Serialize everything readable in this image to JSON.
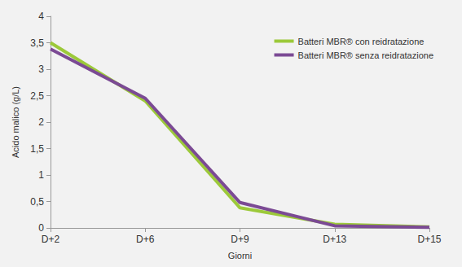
{
  "chart_data": {
    "type": "line",
    "x_label": "Giorni",
    "y_label": "Acido malico (g/L)",
    "categories": [
      "D+2",
      "D+6",
      "D+9",
      "D+13",
      "D+15"
    ],
    "series": [
      {
        "name": "Batteri MBR® con reidratazione",
        "color": "#9cc93a",
        "values": [
          3.5,
          2.4,
          0.38,
          0.07,
          0.02
        ]
      },
      {
        "name": "Batteri MBR® senza reidratazione",
        "color": "#7b4a94",
        "values": [
          3.38,
          2.45,
          0.48,
          0.04,
          0.01
        ]
      }
    ],
    "ylim": [
      0,
      4
    ],
    "yticks": [
      0,
      {
        "value": 0.5,
        "label": "0,5"
      },
      1,
      {
        "value": 1.5,
        "label": "1,5"
      },
      2,
      {
        "value": 2.5,
        "label": "2,5"
      },
      3,
      {
        "value": 3.5,
        "label": "3,5"
      },
      4
    ],
    "grid": false,
    "legend": "upper right"
  }
}
